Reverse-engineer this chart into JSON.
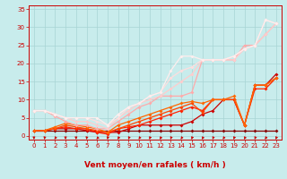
{
  "xlabel": "Vent moyen/en rafales ( km/h )",
  "xlim": [
    -0.5,
    23.5
  ],
  "ylim": [
    -1,
    36
  ],
  "plot_ylim": [
    0,
    36
  ],
  "xticks": [
    0,
    1,
    2,
    3,
    4,
    5,
    6,
    7,
    8,
    9,
    10,
    11,
    12,
    13,
    14,
    15,
    16,
    17,
    18,
    19,
    20,
    21,
    22,
    23
  ],
  "yticks": [
    0,
    5,
    10,
    15,
    20,
    25,
    30,
    35
  ],
  "bg_color": "#c8ecec",
  "grid_color": "#a8d4d4",
  "lines": [
    {
      "x": [
        0,
        1,
        2,
        3,
        4,
        5,
        6,
        7,
        8,
        9,
        10,
        11,
        12,
        13,
        14,
        15,
        16,
        17,
        18,
        19,
        20,
        21,
        22,
        23
      ],
      "y": [
        1.5,
        1.5,
        1.5,
        1.5,
        1.5,
        1.5,
        1.5,
        1.5,
        1.5,
        1.5,
        1.5,
        1.5,
        1.5,
        1.5,
        1.5,
        1.5,
        1.5,
        1.5,
        1.5,
        1.5,
        1.5,
        1.5,
        1.5,
        1.5
      ],
      "color": "#880000",
      "lw": 0.9,
      "marker": "D",
      "ms": 2.0
    },
    {
      "x": [
        0,
        1,
        2,
        3,
        4,
        5,
        6,
        7,
        8,
        9,
        10,
        11,
        12,
        13,
        14,
        15,
        16,
        17,
        18,
        19,
        20,
        21,
        22,
        23
      ],
      "y": [
        1.5,
        1.5,
        2,
        2,
        2,
        1.5,
        1,
        1,
        1,
        2,
        3,
        3,
        3,
        3,
        3,
        4,
        6,
        7,
        10,
        10,
        3,
        14,
        14,
        17
      ],
      "color": "#cc0000",
      "lw": 0.9,
      "marker": "D",
      "ms": 2.0
    },
    {
      "x": [
        0,
        1,
        2,
        3,
        4,
        5,
        6,
        7,
        8,
        9,
        10,
        11,
        12,
        13,
        14,
        15,
        16,
        17,
        18,
        19,
        20,
        21,
        22,
        23
      ],
      "y": [
        1.5,
        1.5,
        2,
        2.5,
        2,
        2,
        1,
        0.5,
        2,
        2.5,
        3,
        4,
        5,
        6,
        7,
        8,
        7,
        10,
        10,
        10,
        3,
        13,
        13,
        16
      ],
      "color": "#ff2200",
      "lw": 0.9,
      "marker": "D",
      "ms": 2.0
    },
    {
      "x": [
        0,
        1,
        2,
        3,
        4,
        5,
        6,
        7,
        8,
        9,
        10,
        11,
        12,
        13,
        14,
        15,
        16,
        17,
        18,
        19,
        20,
        21,
        22,
        23
      ],
      "y": [
        1.5,
        1.5,
        2,
        3,
        2.5,
        2,
        1.5,
        1,
        2,
        3,
        4,
        5,
        6,
        7,
        8,
        9,
        6.5,
        10,
        10,
        10,
        3,
        14,
        14,
        16
      ],
      "color": "#ff4400",
      "lw": 0.9,
      "marker": "D",
      "ms": 2.0
    },
    {
      "x": [
        0,
        1,
        2,
        3,
        4,
        5,
        6,
        7,
        8,
        9,
        10,
        11,
        12,
        13,
        14,
        15,
        16,
        17,
        18,
        19,
        20,
        21,
        22,
        23
      ],
      "y": [
        1.5,
        1.5,
        2.5,
        3.5,
        3,
        2.5,
        2,
        1,
        3,
        4,
        5,
        6,
        7,
        8,
        9,
        9.5,
        9,
        10,
        10,
        11,
        3,
        14,
        14,
        16
      ],
      "color": "#ff6600",
      "lw": 0.9,
      "marker": "D",
      "ms": 2.0
    },
    {
      "x": [
        0,
        1,
        2,
        3,
        4,
        5,
        6,
        7,
        8,
        9,
        10,
        11,
        12,
        13,
        14,
        15,
        16,
        17,
        18,
        19,
        20,
        21,
        22,
        23
      ],
      "y": [
        7,
        7,
        5.5,
        4,
        3,
        3,
        2,
        2,
        4,
        6,
        8,
        9,
        11,
        11,
        11,
        12,
        21,
        21,
        21,
        21,
        25,
        25,
        28,
        31
      ],
      "color": "#ffaaaa",
      "lw": 0.9,
      "marker": "D",
      "ms": 2.0
    },
    {
      "x": [
        0,
        1,
        2,
        3,
        4,
        5,
        6,
        7,
        8,
        9,
        10,
        11,
        12,
        13,
        14,
        15,
        16,
        17,
        18,
        19,
        20,
        21,
        22,
        23
      ],
      "y": [
        7,
        7,
        6,
        5,
        4,
        4,
        3,
        2,
        5,
        7,
        9,
        10,
        11,
        13,
        15,
        17,
        21,
        21,
        21,
        21,
        24,
        25,
        28,
        31
      ],
      "color": "#ffcccc",
      "lw": 0.9,
      "marker": "D",
      "ms": 2.0
    },
    {
      "x": [
        0,
        1,
        2,
        3,
        4,
        5,
        6,
        7,
        8,
        9,
        10,
        11,
        12,
        13,
        14,
        15,
        16,
        17,
        18,
        19,
        20,
        21,
        22,
        23
      ],
      "y": [
        7,
        7,
        6,
        5,
        5,
        5,
        4,
        3,
        5,
        8,
        9,
        11,
        12,
        16,
        18,
        19,
        21,
        21,
        21,
        22,
        24,
        25,
        32,
        31
      ],
      "color": "#ffdddd",
      "lw": 0.9,
      "marker": "D",
      "ms": 2.0
    },
    {
      "x": [
        0,
        1,
        2,
        3,
        4,
        5,
        6,
        7,
        8,
        9,
        10,
        11,
        12,
        13,
        14,
        15,
        16,
        17,
        18,
        19,
        20,
        21,
        22,
        23
      ],
      "y": [
        7,
        7,
        6,
        5,
        5,
        5,
        5,
        3,
        6,
        8,
        9,
        11,
        12,
        18,
        22,
        22,
        21,
        21,
        21,
        22,
        24,
        25,
        32,
        31
      ],
      "color": "#ffeeee",
      "lw": 0.9,
      "marker": "D",
      "ms": 2.0
    }
  ],
  "arrow_color": "#cc0000",
  "axis_label_fontsize": 6.5,
  "tick_fontsize": 5.0,
  "arrow_angles": [
    -90,
    -100,
    -120,
    -90,
    -90,
    -100,
    -130,
    -100,
    -120,
    -110,
    -120,
    -110,
    -120,
    -110,
    -120,
    -110,
    -120,
    -110,
    -120,
    -110,
    -120,
    -110,
    -120,
    -110
  ]
}
